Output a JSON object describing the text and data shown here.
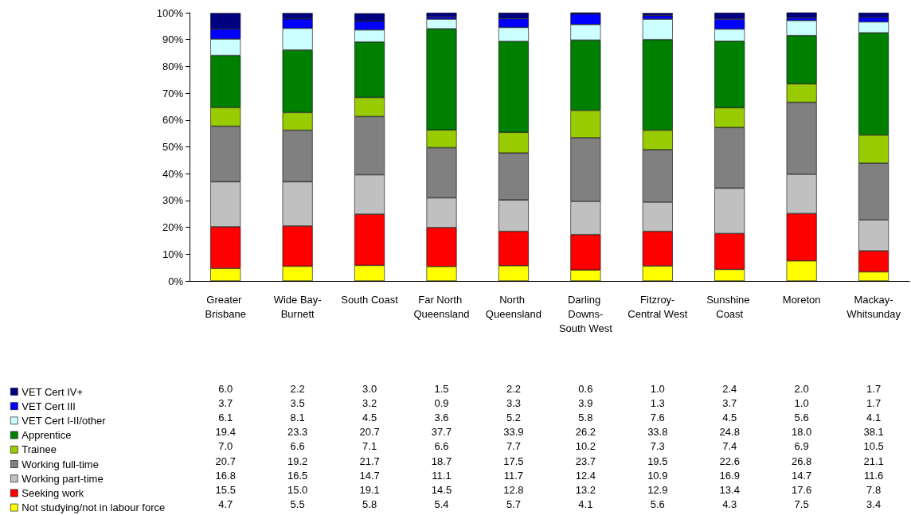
{
  "chart_data": {
    "type": "bar",
    "stacked": true,
    "categories": [
      "Greater Brisbane",
      "Wide Bay-Burnett",
      "South Coast",
      "Far North Queensland",
      "North Queensland",
      "Darling Downs-South West",
      "Fitzroy-Central West",
      "Sunshine Coast",
      "Moreton",
      "Mackay-Whitsunday"
    ],
    "ylim": [
      0,
      100
    ],
    "yticks": [
      {
        "value": 0,
        "label": "0%"
      },
      {
        "value": 10,
        "label": "10%"
      },
      {
        "value": 20,
        "label": "20%"
      },
      {
        "value": 30,
        "label": "30%"
      },
      {
        "value": 40,
        "label": "40%"
      },
      {
        "value": 50,
        "label": "50%"
      },
      {
        "value": 60,
        "label": "60%"
      },
      {
        "value": 70,
        "label": "70%"
      },
      {
        "value": 80,
        "label": "80%"
      },
      {
        "value": 90,
        "label": "90%"
      },
      {
        "value": 100,
        "label": "100%"
      }
    ],
    "grid": false,
    "legend": "bottom left",
    "series": [
      {
        "name": "Not studying/not in labour force",
        "color": "#ffff00",
        "values": [
          4.7,
          5.5,
          5.8,
          5.4,
          5.7,
          4.1,
          5.6,
          4.3,
          7.5,
          3.4
        ],
        "value_labels": [
          "4.7",
          "5.5",
          "5.8",
          "5.4",
          "5.7",
          "4.1",
          "5.6",
          "4.3",
          "7.5",
          "3.4"
        ]
      },
      {
        "name": "Seeking work",
        "color": "#ff0000",
        "values": [
          15.5,
          15.0,
          19.1,
          14.5,
          12.8,
          13.2,
          12.9,
          13.4,
          17.6,
          7.8
        ],
        "value_labels": [
          "15.5",
          "15.0",
          "19.1",
          "14.5",
          "12.8",
          "13.2",
          "12.9",
          "13.4",
          "17.6",
          "7.8"
        ]
      },
      {
        "name": "Working part-time",
        "color": "#c0c0c0",
        "values": [
          16.8,
          16.5,
          14.7,
          11.1,
          11.7,
          12.4,
          10.9,
          16.9,
          14.7,
          11.6
        ],
        "value_labels": [
          "16.8",
          "16.5",
          "14.7",
          "11.1",
          "11.7",
          "12.4",
          "10.9",
          "16.9",
          "14.7",
          "11.6"
        ]
      },
      {
        "name": "Working full-time",
        "color": "#808080",
        "values": [
          20.7,
          19.2,
          21.7,
          18.7,
          17.5,
          23.7,
          19.5,
          22.6,
          26.8,
          21.1
        ],
        "value_labels": [
          "20.7",
          "19.2",
          "21.7",
          "18.7",
          "17.5",
          "23.7",
          "19.5",
          "22.6",
          "26.8",
          "21.1"
        ]
      },
      {
        "name": "Trainee",
        "color": "#99cc00",
        "values": [
          7.0,
          6.6,
          7.1,
          6.6,
          7.7,
          10.2,
          7.3,
          7.4,
          6.9,
          10.5
        ],
        "value_labels": [
          "7.0",
          "6.6",
          "7.1",
          "6.6",
          "7.7",
          "10.2",
          "7.3",
          "7.4",
          "6.9",
          "10.5"
        ]
      },
      {
        "name": "Apprentice",
        "color": "#008000",
        "values": [
          19.4,
          23.3,
          20.7,
          37.7,
          33.9,
          26.2,
          33.8,
          24.8,
          18.0,
          38.1
        ],
        "value_labels": [
          "19.4",
          "23.3",
          "20.7",
          "37.7",
          "33.9",
          "26.2",
          "33.8",
          "24.8",
          "18.0",
          "38.1"
        ]
      },
      {
        "name": "VET Cert I-II/other",
        "color": "#ccffff",
        "values": [
          6.1,
          8.1,
          4.5,
          3.6,
          5.2,
          5.8,
          7.6,
          4.5,
          5.6,
          4.1
        ],
        "value_labels": [
          "6.1",
          "8.1",
          "4.5",
          "3.6",
          "5.2",
          "5.8",
          "7.6",
          "4.5",
          "5.6",
          "4.1"
        ]
      },
      {
        "name": "VET Cert III",
        "color": "#0000ff",
        "values": [
          3.7,
          3.5,
          3.2,
          0.9,
          3.3,
          3.9,
          1.3,
          3.7,
          1.0,
          1.7
        ],
        "value_labels": [
          "3.7",
          "3.5",
          "3.2",
          "0.9",
          "3.3",
          "3.9",
          "1.3",
          "3.7",
          "1.0",
          "1.7"
        ]
      },
      {
        "name": "VET Cert IV+",
        "color": "#000080",
        "values": [
          6.0,
          2.2,
          3.0,
          1.5,
          2.2,
          0.6,
          1.0,
          2.4,
          2.0,
          1.7
        ],
        "value_labels": [
          "6.0",
          "2.2",
          "3.0",
          "1.5",
          "2.2",
          "0.6",
          "1.0",
          "2.4",
          "2.0",
          "1.7"
        ]
      }
    ]
  }
}
